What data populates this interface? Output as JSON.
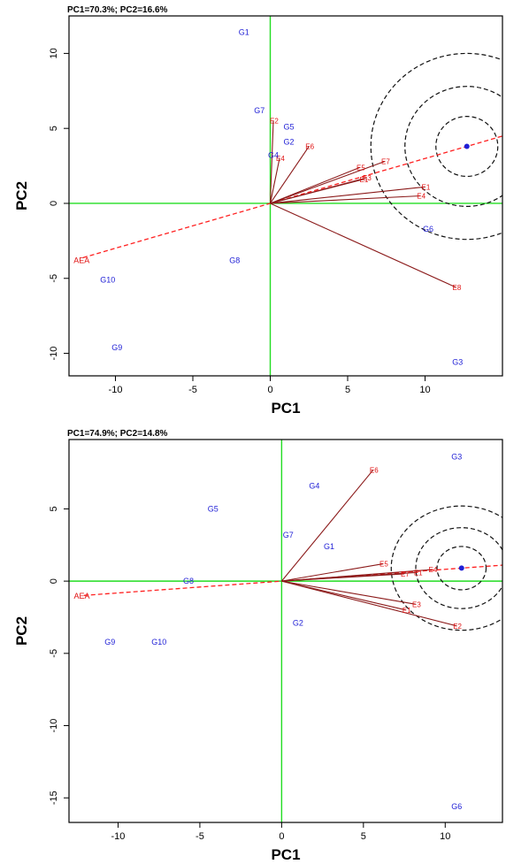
{
  "chart_data": [
    {
      "type": "scatter",
      "title": "PC1=70.3%; PC2=16.6%",
      "xlabel": "PC1",
      "ylabel": "PC2",
      "xlim": [
        -13,
        15
      ],
      "ylim": [
        -11.5,
        12.5
      ],
      "xticks": [
        -10,
        -5,
        0,
        5,
        10
      ],
      "yticks": [
        -10,
        -5,
        0,
        5,
        10
      ],
      "xtick_labels": [
        "-10",
        "-5",
        "0",
        "5",
        "10"
      ],
      "ytick_labels": [
        "-10",
        "-5",
        "0",
        "5",
        "10"
      ],
      "genotypes": [
        {
          "label": "G1",
          "x": -1.7,
          "y": 11.4
        },
        {
          "label": "G7",
          "x": -0.7,
          "y": 6.2
        },
        {
          "label": "G5",
          "x": 1.2,
          "y": 5.1
        },
        {
          "label": "G2",
          "x": 1.2,
          "y": 4.1
        },
        {
          "label": "G4",
          "x": 0.2,
          "y": 3.2
        },
        {
          "label": "G6",
          "x": 10.2,
          "y": -1.7
        },
        {
          "label": "G8",
          "x": -2.3,
          "y": -3.8
        },
        {
          "label": "G10",
          "x": -10.5,
          "y": -5.1
        },
        {
          "label": "G9",
          "x": -9.9,
          "y": -9.6
        },
        {
          "label": "G3",
          "x": 12.1,
          "y": -10.6
        }
      ],
      "environments": [
        {
          "label": "E2",
          "x": 0.2,
          "y": 5.5
        },
        {
          "label": "E4",
          "x": 0.6,
          "y": 3.0
        },
        {
          "label": "E6",
          "x": 2.5,
          "y": 3.8
        },
        {
          "label": "E5",
          "x": 5.8,
          "y": 2.4
        },
        {
          "label": "E7",
          "x": 7.4,
          "y": 2.8
        },
        {
          "label": "E1",
          "x": 6.0,
          "y": 1.6
        },
        {
          "label": "E3",
          "x": 6.2,
          "y": 1.7
        },
        {
          "label": "E1",
          "x": 10.0,
          "y": 1.1
        },
        {
          "label": "E4",
          "x": 9.7,
          "y": 0.5
        },
        {
          "label": "E8",
          "x": 12.0,
          "y": -5.6
        }
      ],
      "aea_label": "AEA",
      "ideal_point": {
        "x": 12.7,
        "y": 3.8
      },
      "ring_radii": [
        2.0,
        4.0,
        6.2
      ]
    },
    {
      "type": "scatter",
      "title": "PC1=74.9%; PC2=14.8%",
      "xlabel": "PC1",
      "ylabel": "PC2",
      "xlim": [
        -13,
        13.5
      ],
      "ylim": [
        -16.7,
        9.8
      ],
      "xticks": [
        -10,
        -5,
        0,
        5,
        10
      ],
      "yticks": [
        -15,
        -10,
        -5,
        0,
        5
      ],
      "xtick_labels": [
        "-10",
        "-5",
        "0",
        "5",
        "10"
      ],
      "ytick_labels": [
        "-15",
        "-10",
        "-5",
        "0",
        "5"
      ],
      "genotypes": [
        {
          "label": "G3",
          "x": 10.7,
          "y": 8.6
        },
        {
          "label": "G4",
          "x": 2.0,
          "y": 6.6
        },
        {
          "label": "G5",
          "x": -4.2,
          "y": 5.0
        },
        {
          "label": "G7",
          "x": 0.4,
          "y": 3.2
        },
        {
          "label": "G1",
          "x": 2.9,
          "y": 2.4
        },
        {
          "label": "G8",
          "x": -5.7,
          "y": 0.0
        },
        {
          "label": "G2",
          "x": 1.0,
          "y": -2.9
        },
        {
          "label": "G9",
          "x": -10.5,
          "y": -4.2
        },
        {
          "label": "G10",
          "x": -7.5,
          "y": -4.2
        },
        {
          "label": "G6",
          "x": 10.7,
          "y": -15.6
        }
      ],
      "environments": [
        {
          "label": "E6",
          "x": 5.6,
          "y": 7.7
        },
        {
          "label": "E5",
          "x": 6.2,
          "y": 1.2
        },
        {
          "label": "E4",
          "x": 9.2,
          "y": 0.8
        },
        {
          "label": "E7",
          "x": 7.5,
          "y": 0.5
        },
        {
          "label": "E1",
          "x": 8.3,
          "y": 0.6
        },
        {
          "label": "E3",
          "x": 8.2,
          "y": -1.6
        },
        {
          "label": "E1",
          "x": 7.6,
          "y": -2.0
        },
        {
          "label": "E2",
          "x": 10.7,
          "y": -3.1
        }
      ],
      "aea_label": "AEA",
      "ideal_point": {
        "x": 11.0,
        "y": 0.9
      },
      "ring_radii": [
        1.5,
        2.8,
        4.3
      ]
    }
  ]
}
